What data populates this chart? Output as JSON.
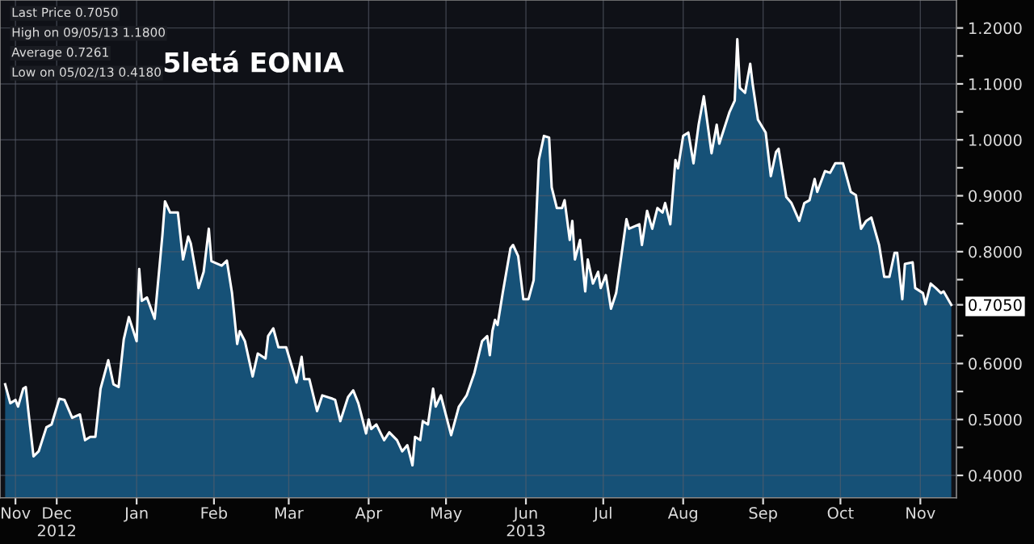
{
  "chart_data": {
    "type": "area",
    "title": "5letá EONIA",
    "x": [
      "2012-11-25",
      "2012-11-27",
      "2012-11-29",
      "2012-11-30",
      "2012-12-02",
      "2012-12-03",
      "2012-12-04",
      "2012-12-06",
      "2012-12-08",
      "2012-12-11",
      "2012-12-13",
      "2012-12-16",
      "2012-12-18",
      "2012-12-21",
      "2012-12-24",
      "2012-12-26",
      "2012-12-28",
      "2012-12-30",
      "2013-01-01",
      "2013-01-04",
      "2013-01-06",
      "2013-01-08",
      "2013-01-10",
      "2013-01-12",
      "2013-01-15",
      "2013-01-16",
      "2013-01-17",
      "2013-01-19",
      "2013-01-22",
      "2013-01-25",
      "2013-01-26",
      "2013-01-28",
      "2013-01-31",
      "2013-02-02",
      "2013-02-04",
      "2013-02-05",
      "2013-02-08",
      "2013-02-10",
      "2013-02-12",
      "2013-02-13",
      "2013-02-17",
      "2013-02-19",
      "2013-02-21",
      "2013-02-23",
      "2013-02-24",
      "2013-02-26",
      "2013-03-01",
      "2013-03-03",
      "2013-03-06",
      "2013-03-07",
      "2013-03-09",
      "2013-03-11",
      "2013-03-14",
      "2013-03-17",
      "2013-03-18",
      "2013-03-20",
      "2013-03-21",
      "2013-03-23",
      "2013-03-26",
      "2013-03-28",
      "2013-04-01",
      "2013-04-02",
      "2013-04-04",
      "2013-04-07",
      "2013-04-09",
      "2013-04-11",
      "2013-04-14",
      "2013-04-15",
      "2013-04-16",
      "2013-04-18",
      "2013-04-21",
      "2013-04-23",
      "2013-04-26",
      "2013-04-28",
      "2013-04-30",
      "2013-05-02",
      "2013-05-03",
      "2013-05-05",
      "2013-05-06",
      "2013-05-08",
      "2013-05-10",
      "2013-05-11",
      "2013-05-13",
      "2013-05-17",
      "2013-05-20",
      "2013-05-23",
      "2013-05-26",
      "2013-05-29",
      "2013-05-31",
      "2013-06-01",
      "2013-06-02",
      "2013-06-03",
      "2013-06-04",
      "2013-06-06",
      "2013-06-09",
      "2013-06-10",
      "2013-06-12",
      "2013-06-14",
      "2013-06-16",
      "2013-06-18",
      "2013-06-20",
      "2013-06-22",
      "2013-06-24",
      "2013-06-25",
      "2013-06-27",
      "2013-06-29",
      "2013-06-30",
      "2013-07-02",
      "2013-07-03",
      "2013-07-04",
      "2013-07-06",
      "2013-07-08",
      "2013-07-09",
      "2013-07-11",
      "2013-07-13",
      "2013-07-14",
      "2013-07-16",
      "2013-07-18",
      "2013-07-20",
      "2013-07-24",
      "2013-07-25",
      "2013-07-29",
      "2013-07-30",
      "2013-08-01",
      "2013-08-03",
      "2013-08-05",
      "2013-08-07",
      "2013-08-08",
      "2013-08-10",
      "2013-08-12",
      "2013-08-13",
      "2013-08-15",
      "2013-08-17",
      "2013-08-19",
      "2013-08-21",
      "2013-08-23",
      "2013-08-24",
      "2013-08-26",
      "2013-08-28",
      "2013-08-29",
      "2013-09-02",
      "2013-09-04",
      "2013-09-05",
      "2013-09-06",
      "2013-09-08",
      "2013-09-10",
      "2013-09-11",
      "2013-09-13",
      "2013-09-16",
      "2013-09-18",
      "2013-09-20",
      "2013-09-21",
      "2013-09-24",
      "2013-09-26",
      "2013-09-29",
      "2013-10-01",
      "2013-10-03",
      "2013-10-05",
      "2013-10-06",
      "2013-10-09",
      "2013-10-11",
      "2013-10-13",
      "2013-10-16",
      "2013-10-19",
      "2013-10-21",
      "2013-10-23",
      "2013-10-25",
      "2013-10-27",
      "2013-10-30",
      "2013-11-01",
      "2013-11-03",
      "2013-11-05",
      "2013-11-06",
      "2013-11-08",
      "2013-11-09",
      "2013-11-12",
      "2013-11-13",
      "2013-11-16",
      "2013-11-17",
      "2013-11-19",
      "2013-11-21",
      "2013-11-23",
      "2013-11-24",
      "2013-11-27"
    ],
    "series": [
      {
        "color": "#17557c",
        "values": [
          0.563,
          0.529,
          0.535,
          0.523,
          0.555,
          0.558,
          0.515,
          0.434,
          0.443,
          0.486,
          0.491,
          0.537,
          0.535,
          0.503,
          0.509,
          0.463,
          0.469,
          0.469,
          0.555,
          0.606,
          0.563,
          0.558,
          0.643,
          0.683,
          0.64,
          0.769,
          0.712,
          0.718,
          0.68,
          0.83,
          0.89,
          0.87,
          0.87,
          0.786,
          0.827,
          0.815,
          0.735,
          0.764,
          0.841,
          0.783,
          0.775,
          0.784,
          0.726,
          0.635,
          0.658,
          0.64,
          0.577,
          0.618,
          0.609,
          0.649,
          0.663,
          0.629,
          0.629,
          0.583,
          0.566,
          0.612,
          0.572,
          0.572,
          0.515,
          0.543,
          0.537,
          0.535,
          0.497,
          0.54,
          0.552,
          0.529,
          0.475,
          0.5,
          0.483,
          0.491,
          0.463,
          0.477,
          0.463,
          0.443,
          0.454,
          0.418,
          0.469,
          0.463,
          0.497,
          0.491,
          0.555,
          0.523,
          0.543,
          0.472,
          0.523,
          0.543,
          0.583,
          0.64,
          0.649,
          0.615,
          0.658,
          0.678,
          0.669,
          0.726,
          0.806,
          0.812,
          0.792,
          0.715,
          0.715,
          0.749,
          0.964,
          1.007,
          1.004,
          0.915,
          0.878,
          0.878,
          0.892,
          0.821,
          0.855,
          0.786,
          0.821,
          0.729,
          0.786,
          0.743,
          0.764,
          0.735,
          0.758,
          0.698,
          0.726,
          0.858,
          0.841,
          0.849,
          0.812,
          0.873,
          0.841,
          0.878,
          0.87,
          0.887,
          0.849,
          0.964,
          0.949,
          1.007,
          1.013,
          0.958,
          1.027,
          1.078,
          1.044,
          0.976,
          1.027,
          0.993,
          1.05,
          1.07,
          1.18,
          1.093,
          1.084,
          1.136,
          1.098,
          1.036,
          1.013,
          0.935,
          0.978,
          0.984,
          0.898,
          0.887,
          0.855,
          0.887,
          0.892,
          0.93,
          0.907,
          0.944,
          0.941,
          0.958,
          0.958,
          0.907,
          0.901,
          0.841,
          0.855,
          0.861,
          0.812,
          0.755,
          0.755,
          0.798,
          0.798,
          0.715,
          0.778,
          0.781,
          0.735,
          0.726,
          0.706,
          0.743,
          0.735,
          0.726,
          0.729,
          0.705
        ]
      }
    ],
    "xlim": [
      "2012-11-23",
      "2013-11-29"
    ],
    "xticks": [
      {
        "value": "2012-11-29",
        "label": "Nov"
      },
      {
        "value": "2012-12-15",
        "label": "Dec\n2012"
      },
      {
        "value": "2013-01-15",
        "label": "Jan"
      },
      {
        "value": "2013-02-14",
        "label": "Feb"
      },
      {
        "value": "2013-03-15",
        "label": "Mar"
      },
      {
        "value": "2013-04-15",
        "label": "Apr"
      },
      {
        "value": "2013-05-15",
        "label": "May"
      },
      {
        "value": "2013-06-15",
        "label": "Jun\n2013"
      },
      {
        "value": "2013-07-15",
        "label": "Jul"
      },
      {
        "value": "2013-08-15",
        "label": "Aug"
      },
      {
        "value": "2013-09-15",
        "label": "Sep"
      },
      {
        "value": "2013-10-15",
        "label": "Oct"
      },
      {
        "value": "2013-11-15",
        "label": "Nov"
      }
    ],
    "ylim": [
      0.36,
      1.25
    ],
    "yticks": [
      {
        "value": 0.4,
        "label": "0.4000"
      },
      {
        "value": 0.45,
        "label": null
      },
      {
        "value": 0.5,
        "label": "0.5000"
      },
      {
        "value": 0.55,
        "label": null
      },
      {
        "value": 0.6,
        "label": "0.6000"
      },
      {
        "value": 0.65,
        "label": null
      },
      {
        "value": 0.705,
        "label": "0.7050"
      },
      {
        "value": 0.75,
        "label": null
      },
      {
        "value": 0.8,
        "label": "0.8000"
      },
      {
        "value": 0.85,
        "label": null
      },
      {
        "value": 0.9,
        "label": "0.9000"
      },
      {
        "value": 0.95,
        "label": null
      },
      {
        "value": 1.0,
        "label": "1.0000"
      },
      {
        "value": 1.05,
        "label": null
      },
      {
        "value": 1.1,
        "label": "1.1000"
      },
      {
        "value": 1.15,
        "label": null
      },
      {
        "value": 1.2,
        "label": "1.2000"
      }
    ],
    "grid": true,
    "annotations": [
      "Last Price 0.7050",
      "High on 09/05/13 1.1800",
      "Average 0.7261",
      "Low on 05/02/13 0.4180"
    ]
  }
}
